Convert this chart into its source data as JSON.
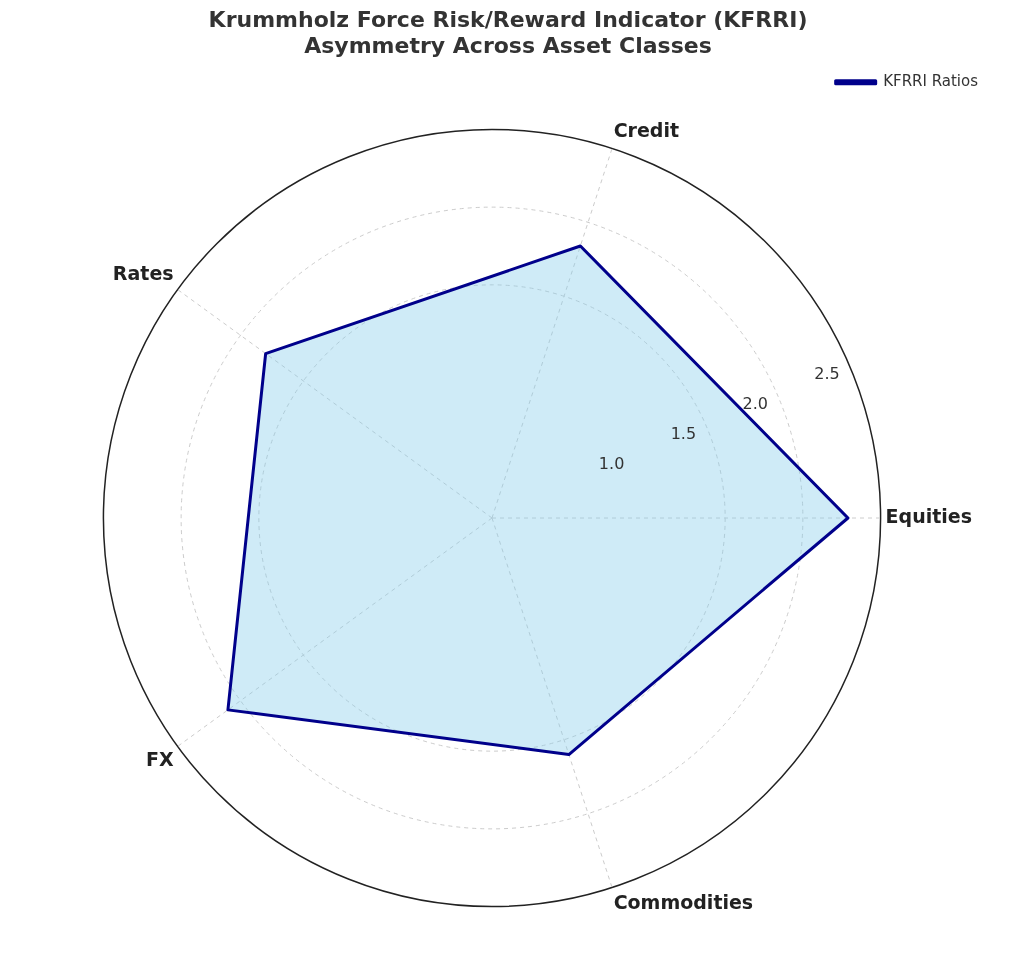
{
  "chart_data": {
    "type": "radar",
    "title": "Krummholz Force Risk/Reward Indicator (KFRRI)\nAsymmetry Across Asset Classes",
    "categories": [
      "Credit",
      "Equities",
      "Commodities",
      "FX",
      "Rates"
    ],
    "series": [
      {
        "name": "KFRRI Ratios",
        "color": "#00008b",
        "values": [
          1.84,
          2.29,
          1.6,
          2.1,
          1.8
        ]
      }
    ],
    "ylim": [
      0,
      2.5
    ],
    "yticks": [
      {
        "value": 1,
        "label": "1.0"
      },
      1.5,
      {
        "value": 2,
        "label": "2.0"
      },
      2.5
    ],
    "grid": true,
    "legend": "top right",
    "marker": "none",
    "line_style": "solid"
  }
}
